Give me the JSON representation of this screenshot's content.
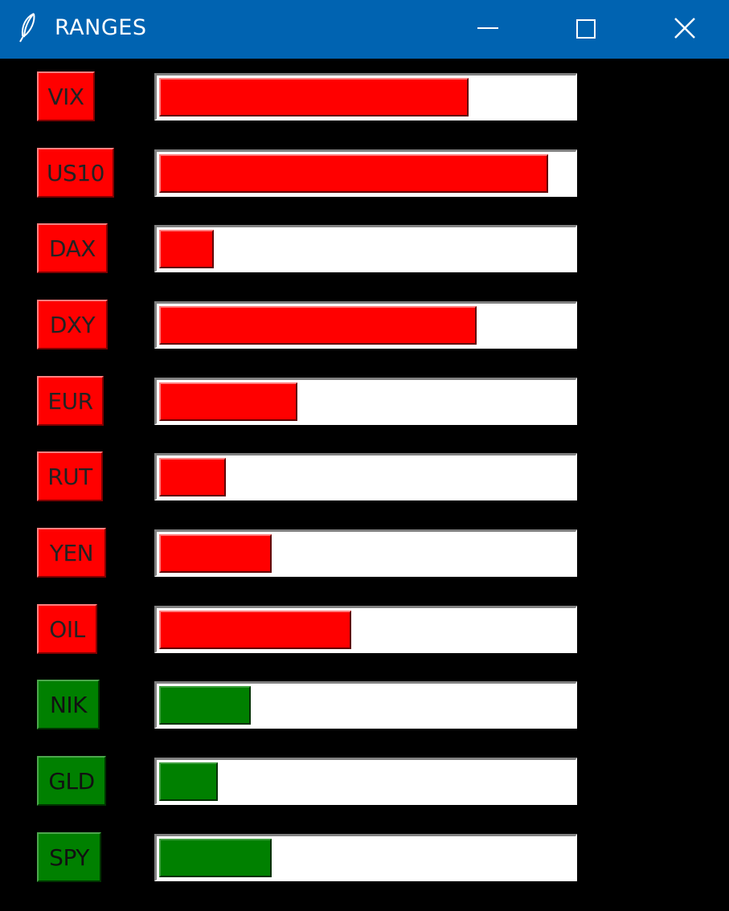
{
  "window": {
    "title": "RANGES",
    "icon": "feather-icon",
    "controls": {
      "minimize": "minimize-icon",
      "maximize": "maximize-icon",
      "close": "close-icon"
    }
  },
  "colors": {
    "titlebar": "#0063b1",
    "background": "#000000",
    "red": "#ff0000",
    "green": "#008000",
    "track": "#ffffff"
  },
  "rows": [
    {
      "label": "VIX",
      "color": "red",
      "fill_percent": 74
    },
    {
      "label": "US10",
      "color": "red",
      "fill_percent": 93
    },
    {
      "label": "DAX",
      "color": "red",
      "fill_percent": 13
    },
    {
      "label": "DXY",
      "color": "red",
      "fill_percent": 76
    },
    {
      "label": "EUR",
      "color": "red",
      "fill_percent": 33
    },
    {
      "label": "RUT",
      "color": "red",
      "fill_percent": 16
    },
    {
      "label": "YEN",
      "color": "red",
      "fill_percent": 27
    },
    {
      "label": "OIL",
      "color": "red",
      "fill_percent": 46
    },
    {
      "label": "NIK",
      "color": "green",
      "fill_percent": 22
    },
    {
      "label": "GLD",
      "color": "green",
      "fill_percent": 14
    },
    {
      "label": "SPY",
      "color": "green",
      "fill_percent": 27
    }
  ]
}
